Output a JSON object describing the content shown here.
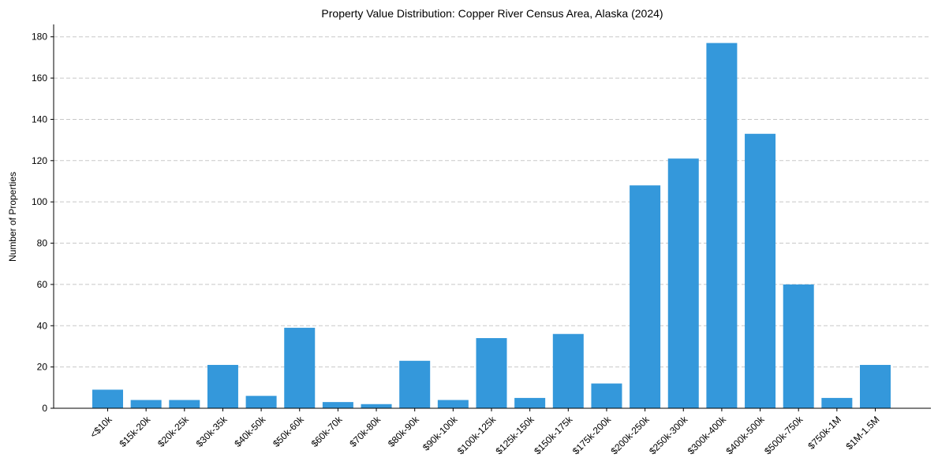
{
  "chart_data": {
    "type": "bar",
    "title": "Property Value Distribution: Copper River Census Area, Alaska (2024)",
    "xlabel": "",
    "ylabel": "Number of Properties",
    "categories": [
      "<$10k",
      "$15k-20k",
      "$20k-25k",
      "$30k-35k",
      "$40k-50k",
      "$50k-60k",
      "$60k-70k",
      "$70k-80k",
      "$80k-90k",
      "$90k-100k",
      "$100k-125k",
      "$125k-150k",
      "$150k-175k",
      "$175k-200k",
      "$200k-250k",
      "$250k-300k",
      "$300k-400k",
      "$400k-500k",
      "$500k-750k",
      "$750k-1M",
      "$1M-1.5M"
    ],
    "values": [
      9,
      4,
      4,
      21,
      6,
      39,
      3,
      2,
      23,
      4,
      34,
      5,
      36,
      12,
      108,
      121,
      177,
      133,
      60,
      5,
      21
    ],
    "ylim": [
      0,
      186
    ],
    "yticks": [
      0,
      20,
      40,
      60,
      80,
      100,
      120,
      140,
      160,
      180
    ],
    "grid": "y-dashed",
    "bar_color": "#3498db"
  }
}
